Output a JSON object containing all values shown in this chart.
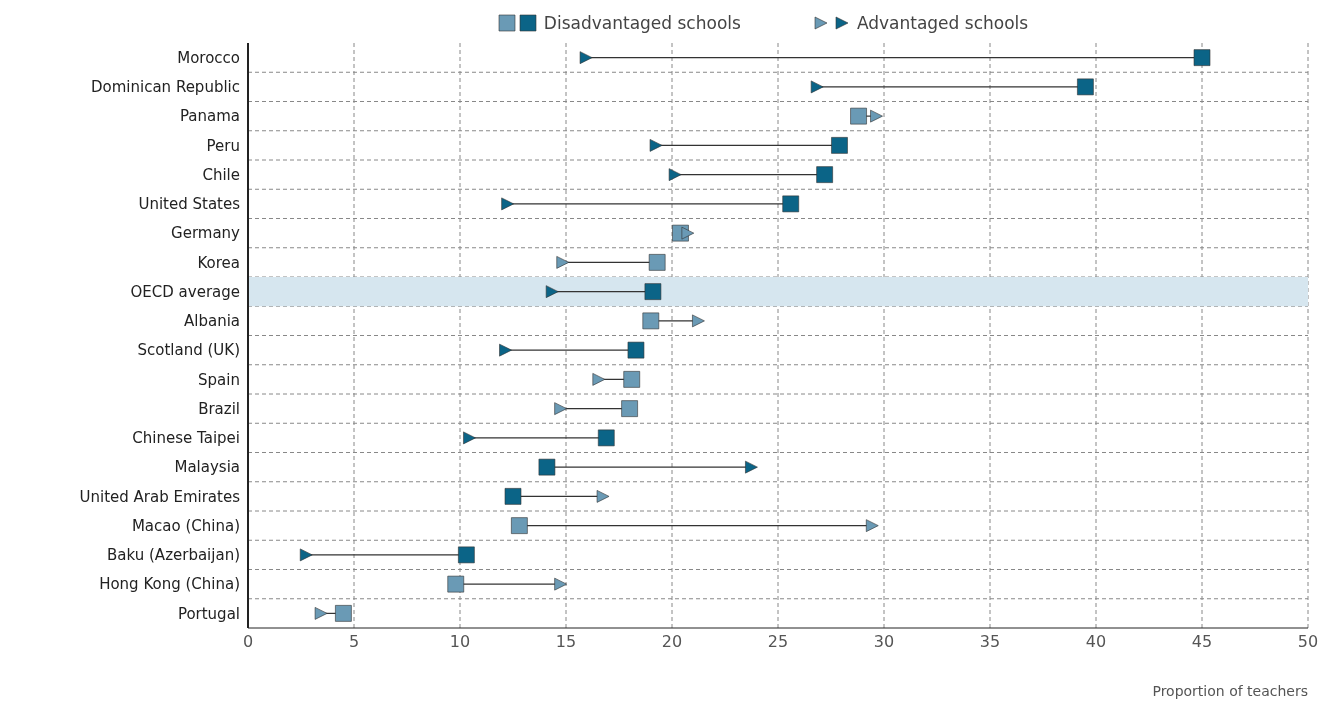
{
  "chart_data": {
    "type": "scatter",
    "orientation": "horizontal",
    "xlabel": "Proportion of teachers",
    "categories": [
      "Morocco",
      "Dominican Republic",
      "Panama",
      "Peru",
      "Chile",
      "United States",
      "Germany",
      "Korea",
      "OECD average",
      "Albania",
      "Scotland (UK)",
      "Spain",
      "Brazil",
      "Chinese Taipei",
      "Malaysia",
      "United Arab Emirates",
      "Macao (China)",
      "Baku (Azerbaijan)",
      "Hong Kong (China)",
      "Portugal"
    ],
    "series": [
      {
        "name": "Disadvantaged schools",
        "marker": "square",
        "color": "#0b6487",
        "values": [
          45,
          39.5,
          28.8,
          27.9,
          27.2,
          25.6,
          20.4,
          19.3,
          19.1,
          19.0,
          18.3,
          18.1,
          18.0,
          16.9,
          14.1,
          12.5,
          12.8,
          10.3,
          9.8,
          4.5
        ],
        "colors": [
          "#0b6487",
          "#0b6487",
          "#6a9ab5",
          "#0b6487",
          "#0b6487",
          "#0b6487",
          "#6a9ab5",
          "#6a9ab5",
          "#0b6487",
          "#6a9ab5",
          "#0b6487",
          "#6a9ab5",
          "#6a9ab5",
          "#0b6487",
          "#0b6487",
          "#0b6487",
          "#6a9ab5",
          "#0b6487",
          "#6a9ab5",
          "#6a9ab5"
        ]
      },
      {
        "name": "Advantaged schools",
        "marker": "triangle",
        "color": "#0b6487",
        "values": [
          15.9,
          26.8,
          29.6,
          19.2,
          20.1,
          12.2,
          20.7,
          14.8,
          14.3,
          21.2,
          12.1,
          16.5,
          14.7,
          10.4,
          23.7,
          16.7,
          29.4,
          2.7,
          14.7,
          3.4
        ],
        "colors": [
          "#0b6487",
          "#0b6487",
          "#6a9ab5",
          "#0b6487",
          "#0b6487",
          "#0b6487",
          "#6a9ab5",
          "#6a9ab5",
          "#0b6487",
          "#6a9ab5",
          "#0b6487",
          "#6a9ab5",
          "#6a9ab5",
          "#0b6487",
          "#0b6487",
          "#6a9ab5",
          "#6a9ab5",
          "#0b6487",
          "#6a9ab5",
          "#6a9ab5"
        ]
      }
    ],
    "xlim": [
      0,
      50
    ],
    "xticks": [
      0,
      5,
      10,
      15,
      20,
      25,
      30,
      35,
      40,
      45,
      50
    ],
    "grid": true,
    "legend": "top",
    "bands": [
      {
        "axis": "y",
        "from": "OECD average",
        "to": "OECD average",
        "color": "#d6e6ef"
      }
    ]
  }
}
